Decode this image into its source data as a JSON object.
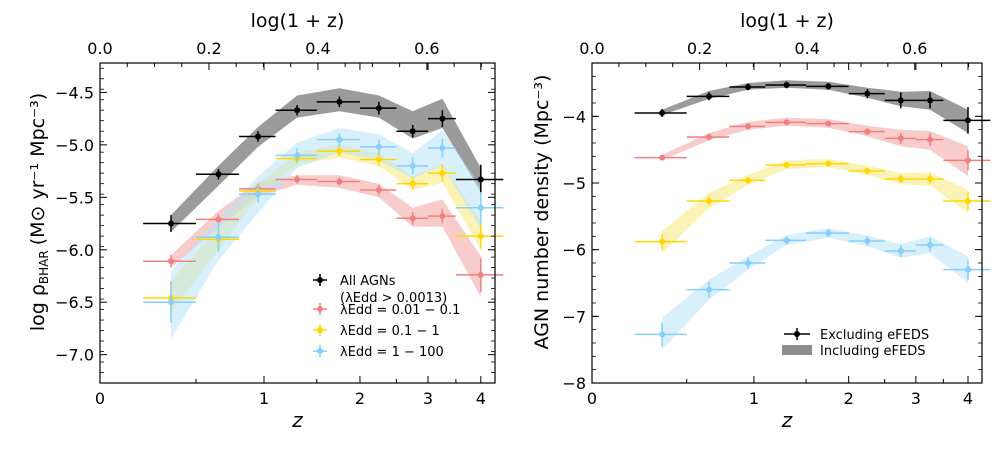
{
  "chart_data": [
    {
      "id": "left",
      "type": "scatter",
      "xlabel": "z",
      "top_xlabel": "log(1 + z)",
      "ylabel_main": "log ρ",
      "ylabel_sub": "BHAR",
      "ylabel_unit": "(M⊙ yr⁻¹ Mpc⁻³)",
      "top_ticks": [
        0.0,
        0.2,
        0.4,
        0.6
      ],
      "top_tick_labels": [
        "0.0",
        "0.2",
        "0.4",
        "0.6"
      ],
      "bottom_ticks": [
        0,
        1,
        2,
        3,
        4
      ],
      "bottom_tick_labels": [
        "0",
        "1",
        "2",
        "3",
        "4"
      ],
      "yticks": [
        -4.5,
        -5.0,
        -5.5,
        -6.0,
        -6.5,
        -7.0
      ],
      "ytick_labels": [
        "−4.5",
        "−5.0",
        "−5.5",
        "−6.0",
        "−6.5",
        "−7.0"
      ],
      "ylim": [
        -7.27,
        -4.22
      ],
      "xlim_log1pz": [
        0.0,
        0.725
      ],
      "legend": {
        "position": "lower-right",
        "entries": [
          {
            "series": 0,
            "line1": "All AGNs",
            "line2": "(λEdd > 0.0013)"
          },
          {
            "series": 1,
            "line1": "λEdd = 0.01 − 0.1"
          },
          {
            "series": 2,
            "line1": "λEdd = 0.1 − 1"
          },
          {
            "series": 3,
            "line1": "λEdd = 1 − 100"
          }
        ]
      },
      "series": [
        {
          "name": "All AGNs (λEdd > 0.0013)",
          "color": "#000000",
          "band_color": "#7a7a7a",
          "z": [
            0.35,
            0.65,
            0.95,
            1.3,
            1.75,
            2.25,
            2.75,
            3.25,
            4.0
          ],
          "zerr": [
            [
              0.15,
              0.15
            ],
            [
              0.15,
              0.15
            ],
            [
              0.15,
              0.15
            ],
            [
              0.2,
              0.2
            ],
            [
              0.25,
              0.25
            ],
            [
              0.25,
              0.25
            ],
            [
              0.25,
              0.25
            ],
            [
              0.25,
              0.25
            ],
            [
              0.5,
              0.5
            ]
          ],
          "y": [
            -5.75,
            -5.28,
            -4.92,
            -4.67,
            -4.59,
            -4.65,
            -4.87,
            -4.75,
            -5.33
          ],
          "yerr": [
            0.08,
            0.05,
            0.05,
            0.05,
            0.05,
            0.06,
            0.06,
            0.08,
            0.14
          ],
          "band_z": [
            0.35,
            0.65,
            0.95,
            1.3,
            1.75,
            2.25,
            2.75,
            3.25,
            4.0
          ],
          "band_lo": [
            -5.83,
            -5.39,
            -5.02,
            -4.74,
            -4.68,
            -4.74,
            -4.94,
            -4.84,
            -5.45
          ],
          "band_hi": [
            -5.67,
            -5.2,
            -4.83,
            -4.53,
            -4.46,
            -4.53,
            -4.68,
            -4.56,
            -5.22
          ]
        },
        {
          "name": "λEdd = 0.01 − 0.1",
          "color": "#f08080",
          "band_color": "#f4a3a3",
          "z": [
            0.35,
            0.65,
            0.95,
            1.3,
            1.75,
            2.25,
            2.75,
            3.25,
            4.0
          ],
          "zerr": [
            [
              0.15,
              0.15
            ],
            [
              0.15,
              0.15
            ],
            [
              0.15,
              0.15
            ],
            [
              0.2,
              0.2
            ],
            [
              0.25,
              0.25
            ],
            [
              0.25,
              0.25
            ],
            [
              0.25,
              0.25
            ],
            [
              0.25,
              0.25
            ],
            [
              0.5,
              0.5
            ]
          ],
          "y": [
            -6.11,
            -5.71,
            -5.42,
            -5.33,
            -5.35,
            -5.43,
            -5.7,
            -5.68,
            -6.24
          ],
          "yerr": [
            0.06,
            0.05,
            0.05,
            0.04,
            0.04,
            0.05,
            0.06,
            0.07,
            0.16
          ],
          "band_z": [
            0.35,
            0.65,
            0.95,
            1.3,
            1.75,
            2.25,
            2.75,
            3.25,
            4.0
          ],
          "band_lo": [
            -6.17,
            -5.79,
            -5.49,
            -5.38,
            -5.41,
            -5.5,
            -5.78,
            -5.78,
            -6.45
          ],
          "band_hi": [
            -6.05,
            -5.63,
            -5.36,
            -5.29,
            -5.29,
            -5.37,
            -5.6,
            -5.52,
            -6.06
          ]
        },
        {
          "name": "λEdd = 0.1 − 1",
          "color": "#ffd700",
          "band_color": "#f7ea7a",
          "z": [
            0.35,
            0.65,
            0.95,
            1.3,
            1.75,
            2.25,
            2.75,
            3.25,
            4.0
          ],
          "zerr": [
            [
              0.15,
              0.15
            ],
            [
              0.15,
              0.15
            ],
            [
              0.15,
              0.15
            ],
            [
              0.2,
              0.2
            ],
            [
              0.25,
              0.25
            ],
            [
              0.25,
              0.25
            ],
            [
              0.25,
              0.25
            ],
            [
              0.25,
              0.25
            ],
            [
              0.5,
              0.5
            ]
          ],
          "y": [
            -6.46,
            -5.9,
            -5.44,
            -5.13,
            -5.06,
            -5.14,
            -5.37,
            -5.27,
            -5.87
          ],
          "yerr": [
            0.15,
            0.1,
            0.06,
            0.05,
            0.05,
            0.06,
            0.06,
            0.08,
            0.12
          ],
          "band_z": [
            0.35,
            0.65,
            0.95,
            1.3,
            1.75,
            2.25,
            2.75,
            3.25,
            4.0
          ],
          "band_lo": [
            -6.6,
            -6.0,
            -5.5,
            -5.19,
            -5.12,
            -5.2,
            -5.43,
            -5.36,
            -6.0
          ],
          "band_hi": [
            -6.3,
            -5.78,
            -5.37,
            -5.07,
            -5.0,
            -5.08,
            -5.3,
            -5.18,
            -5.74
          ]
        },
        {
          "name": "λEdd = 1 − 100",
          "color": "#87cefa",
          "band_color": "#b8e2fa",
          "z": [
            0.35,
            0.65,
            0.95,
            1.3,
            1.75,
            2.25,
            2.75,
            3.25,
            4.0
          ],
          "zerr": [
            [
              0.15,
              0.15
            ],
            [
              0.15,
              0.15
            ],
            [
              0.15,
              0.15
            ],
            [
              0.2,
              0.2
            ],
            [
              0.25,
              0.25
            ],
            [
              0.25,
              0.25
            ],
            [
              0.25,
              0.25
            ],
            [
              0.25,
              0.25
            ],
            [
              0.5,
              0.5
            ]
          ],
          "y": [
            -6.5,
            -5.88,
            -5.47,
            -5.1,
            -4.95,
            -5.02,
            -5.2,
            -5.03,
            -5.6
          ],
          "yerr": [
            0.2,
            0.14,
            0.08,
            0.07,
            0.06,
            0.07,
            0.08,
            0.09,
            0.15
          ],
          "band_z": [
            0.35,
            0.65,
            0.95,
            1.3,
            1.75,
            2.25,
            2.75,
            3.25,
            4.0
          ],
          "band_lo": [
            -6.85,
            -6.1,
            -5.65,
            -5.22,
            -5.07,
            -5.15,
            -5.32,
            -5.2,
            -5.8
          ],
          "band_hi": [
            -6.2,
            -5.7,
            -5.3,
            -4.98,
            -4.84,
            -4.9,
            -5.08,
            -4.86,
            -5.4
          ]
        }
      ]
    },
    {
      "id": "right",
      "type": "scatter",
      "xlabel": "z",
      "top_xlabel": "log(1 + z)",
      "ylabel": "AGN number density (Mpc⁻³)",
      "top_ticks": [
        0.0,
        0.2,
        0.4,
        0.6
      ],
      "top_tick_labels": [
        "0.0",
        "0.2",
        "0.4",
        "0.6"
      ],
      "bottom_ticks": [
        0,
        1,
        2,
        3,
        4
      ],
      "bottom_tick_labels": [
        "0",
        "1",
        "2",
        "3",
        "4"
      ],
      "yticks": [
        -4,
        -5,
        -6,
        -7,
        -8
      ],
      "ytick_labels": [
        "−4",
        "−5",
        "−6",
        "−7",
        "−8"
      ],
      "ylim": [
        -8.0,
        -3.2
      ],
      "xlim_log1pz": [
        0.0,
        0.725
      ],
      "legend": {
        "position": "lower-right",
        "entries": [
          {
            "kind": "errorbar",
            "label": "Excluding eFEDS"
          },
          {
            "kind": "band",
            "label": "Including eFEDS"
          }
        ]
      },
      "series": [
        {
          "name": "All AGNs",
          "color": "#000000",
          "band_color": "#7a7a7a",
          "z": [
            0.35,
            0.65,
            0.95,
            1.3,
            1.75,
            2.25,
            2.75,
            3.25,
            4.0
          ],
          "zerr": [
            [
              0.15,
              0.15
            ],
            [
              0.15,
              0.15
            ],
            [
              0.15,
              0.15
            ],
            [
              0.2,
              0.2
            ],
            [
              0.25,
              0.25
            ],
            [
              0.25,
              0.25
            ],
            [
              0.25,
              0.25
            ],
            [
              0.25,
              0.25
            ],
            [
              0.5,
              0.5
            ]
          ],
          "y": [
            -3.95,
            -3.7,
            -3.56,
            -3.53,
            -3.55,
            -3.66,
            -3.76,
            -3.76,
            -4.06
          ],
          "yerr": [
            0.06,
            0.06,
            0.05,
            0.05,
            0.05,
            0.07,
            0.12,
            0.12,
            0.2
          ],
          "band_z": [
            0.35,
            0.65,
            0.95,
            1.3,
            1.75,
            2.25,
            2.75,
            3.25,
            4.0
          ],
          "band_lo": [
            -3.98,
            -3.74,
            -3.6,
            -3.57,
            -3.6,
            -3.72,
            -3.85,
            -3.9,
            -4.25
          ],
          "band_hi": [
            -3.9,
            -3.62,
            -3.5,
            -3.46,
            -3.48,
            -3.57,
            -3.63,
            -3.62,
            -3.9
          ]
        },
        {
          "name": "λEdd = 0.01 − 0.1",
          "color": "#f08080",
          "band_color": "#f4a3a3",
          "z": [
            0.35,
            0.65,
            0.95,
            1.3,
            1.75,
            2.25,
            2.75,
            3.25,
            4.0
          ],
          "zerr": [
            [
              0.15,
              0.15
            ],
            [
              0.15,
              0.15
            ],
            [
              0.15,
              0.15
            ],
            [
              0.2,
              0.2
            ],
            [
              0.25,
              0.25
            ],
            [
              0.25,
              0.25
            ],
            [
              0.25,
              0.25
            ],
            [
              0.25,
              0.25
            ],
            [
              0.5,
              0.5
            ]
          ],
          "y": [
            -4.62,
            -4.31,
            -4.15,
            -4.09,
            -4.11,
            -4.23,
            -4.33,
            -4.35,
            -4.66
          ],
          "yerr": [
            0.04,
            0.05,
            0.04,
            0.04,
            0.04,
            0.05,
            0.08,
            0.1,
            0.15
          ],
          "band_z": [
            0.35,
            0.65,
            0.95,
            1.3,
            1.75,
            2.25,
            2.75,
            3.25,
            4.0
          ],
          "band_lo": [
            -4.66,
            -4.36,
            -4.2,
            -4.14,
            -4.17,
            -4.3,
            -4.45,
            -4.5,
            -4.9
          ],
          "band_hi": [
            -4.58,
            -4.25,
            -4.08,
            -4.02,
            -4.04,
            -4.14,
            -4.2,
            -4.22,
            -4.45
          ]
        },
        {
          "name": "λEdd = 0.1 − 1",
          "color": "#ffd700",
          "band_color": "#f7ea7a",
          "z": [
            0.35,
            0.65,
            0.95,
            1.3,
            1.75,
            2.25,
            2.75,
            3.25,
            4.0
          ],
          "zerr": [
            [
              0.15,
              0.15
            ],
            [
              0.15,
              0.15
            ],
            [
              0.15,
              0.15
            ],
            [
              0.2,
              0.2
            ],
            [
              0.25,
              0.25
            ],
            [
              0.25,
              0.25
            ],
            [
              0.25,
              0.25
            ],
            [
              0.25,
              0.25
            ],
            [
              0.5,
              0.5
            ]
          ],
          "y": [
            -5.88,
            -5.27,
            -4.96,
            -4.73,
            -4.71,
            -4.82,
            -4.94,
            -4.94,
            -5.27
          ],
          "yerr": [
            0.12,
            0.07,
            0.05,
            0.04,
            0.04,
            0.05,
            0.06,
            0.07,
            0.14
          ],
          "band_z": [
            0.35,
            0.65,
            0.95,
            1.3,
            1.75,
            2.25,
            2.75,
            3.25,
            4.0
          ],
          "band_lo": [
            -6.05,
            -5.38,
            -5.03,
            -4.79,
            -4.76,
            -4.88,
            -5.02,
            -5.04,
            -5.45
          ],
          "band_hi": [
            -5.72,
            -5.15,
            -4.88,
            -4.66,
            -4.64,
            -4.74,
            -4.85,
            -4.84,
            -5.1
          ]
        },
        {
          "name": "λEdd = 1 − 100",
          "color": "#87cefa",
          "band_color": "#b8e2fa",
          "z": [
            0.35,
            0.65,
            0.95,
            1.3,
            1.75,
            2.25,
            2.75,
            3.25,
            4.0
          ],
          "zerr": [
            [
              0.15,
              0.15
            ],
            [
              0.15,
              0.15
            ],
            [
              0.15,
              0.15
            ],
            [
              0.2,
              0.2
            ],
            [
              0.25,
              0.25
            ],
            [
              0.25,
              0.25
            ],
            [
              0.25,
              0.25
            ],
            [
              0.25,
              0.25
            ],
            [
              0.5,
              0.5
            ]
          ],
          "y": [
            -7.27,
            -6.6,
            -6.2,
            -5.86,
            -5.75,
            -5.87,
            -6.02,
            -5.93,
            -6.3
          ],
          "yerr": [
            0.18,
            0.12,
            0.08,
            0.06,
            0.06,
            0.07,
            0.09,
            0.1,
            0.15
          ],
          "band_z": [
            0.35,
            0.65,
            0.95,
            1.3,
            1.75,
            2.25,
            2.75,
            3.25,
            4.0
          ],
          "band_lo": [
            -7.5,
            -6.75,
            -6.3,
            -5.93,
            -5.82,
            -5.95,
            -6.12,
            -6.05,
            -6.5
          ],
          "band_hi": [
            -7.02,
            -6.45,
            -6.1,
            -5.78,
            -5.68,
            -5.79,
            -5.92,
            -5.8,
            -6.1
          ]
        }
      ]
    }
  ]
}
